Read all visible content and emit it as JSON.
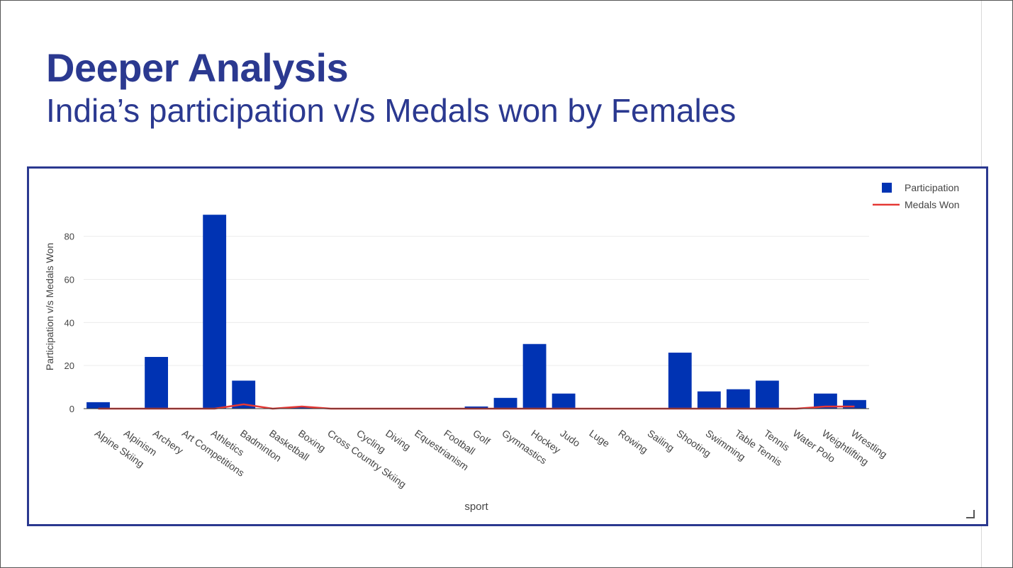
{
  "slide": {
    "title": "Deeper Analysis",
    "subtitle": "India’s participation v/s Medals won by Females"
  },
  "colors": {
    "accent": "#2b3990",
    "bar": "#0033b3",
    "line": "#e53935"
  },
  "chart_data": {
    "type": "bar",
    "categories": [
      "Alpine Skiing",
      "Alpinism",
      "Archery",
      "Art Competitions",
      "Athletics",
      "Badminton",
      "Basketball",
      "Boxing",
      "Cross Country Skiing",
      "Cycling",
      "Diving",
      "Equestrianism",
      "Football",
      "Golf",
      "Gymnastics",
      "Hockey",
      "Judo",
      "Luge",
      "Rowing",
      "Sailing",
      "Shooting",
      "Swimming",
      "Table Tennis",
      "Tennis",
      "Water Polo",
      "Weightlifting",
      "Wrestling"
    ],
    "series": [
      {
        "name": "Participation",
        "type": "bar",
        "color": "#0033b3",
        "values": [
          3,
          0,
          24,
          0,
          90,
          13,
          0,
          1,
          0,
          0,
          0,
          0,
          0,
          1,
          5,
          30,
          7,
          0,
          0,
          0,
          26,
          8,
          9,
          13,
          0,
          7,
          4
        ]
      },
      {
        "name": "Medals Won",
        "type": "line",
        "color": "#e53935",
        "values": [
          0,
          0,
          0,
          0,
          0,
          2,
          0,
          1,
          0,
          0,
          0,
          0,
          0,
          0,
          0,
          0,
          0,
          0,
          0,
          0,
          0,
          0,
          0,
          0,
          0,
          1,
          1
        ]
      }
    ],
    "xlabel": "sport",
    "ylabel": "Participation v/s Medals Won",
    "ylim": [
      0,
      95
    ],
    "yticks": [
      0,
      20,
      40,
      60,
      80
    ],
    "grid": true,
    "legend_position": "top-right"
  }
}
